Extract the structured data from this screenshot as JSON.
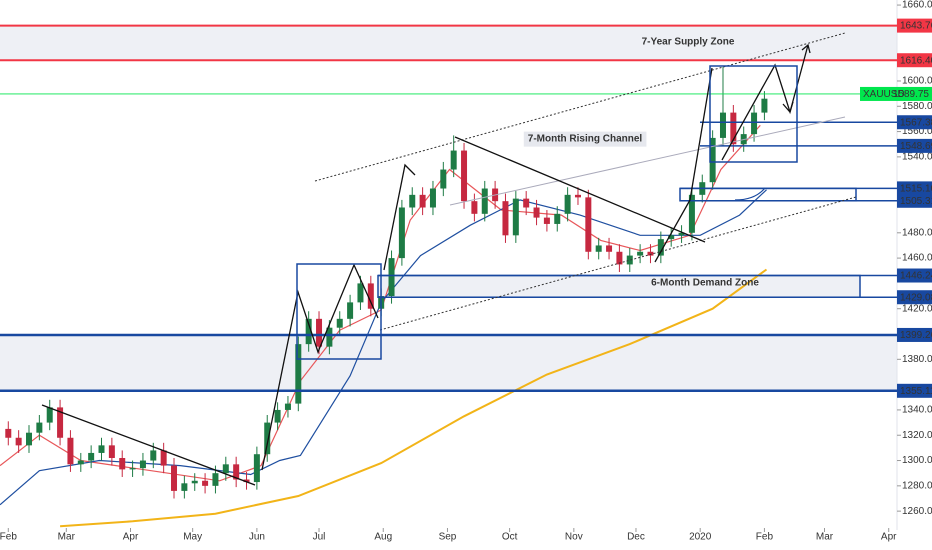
{
  "chart_data": {
    "type": "candlestick",
    "x": [
      0,
      5,
      10,
      15,
      20,
      25,
      30,
      35,
      40,
      45,
      50,
      55,
      60,
      65,
      70,
      75,
      80,
      85,
      90,
      95,
      100,
      105,
      110,
      115,
      120,
      125,
      130,
      135,
      140,
      145,
      150,
      155,
      160,
      165,
      170,
      175,
      180,
      185,
      190,
      195,
      200,
      205,
      210,
      215,
      220,
      225,
      230,
      235,
      240,
      245,
      250,
      255,
      260,
      265,
      270,
      275,
      280,
      285,
      290,
      295,
      300,
      305,
      310,
      315,
      320,
      325,
      330,
      335,
      340,
      345,
      350,
      355,
      360,
      365
    ],
    "open": [
      1325,
      1318,
      1312,
      1322,
      1330,
      1342,
      1318,
      1297,
      1300,
      1306,
      1312,
      1302,
      1293,
      1294,
      1300,
      1308,
      1296,
      1276,
      1282,
      1284,
      1280,
      1290,
      1297,
      1285,
      1283,
      1305,
      1330,
      1340,
      1345,
      1392,
      1412,
      1390,
      1405,
      1412,
      1425,
      1440,
      1420,
      1430,
      1460,
      1500,
      1510,
      1500,
      1515,
      1530,
      1545,
      1505,
      1495,
      1515,
      1505,
      1478,
      1507,
      1500,
      1492,
      1487,
      1495,
      1510,
      1508,
      1465,
      1470,
      1465,
      1455,
      1462,
      1465,
      1462,
      1475,
      1478,
      1480,
      1510,
      1520,
      1555,
      1575,
      1550,
      1558,
      1575
    ],
    "high": [
      1331,
      1324,
      1328,
      1336,
      1348,
      1348,
      1324,
      1306,
      1312,
      1318,
      1318,
      1308,
      1300,
      1306,
      1314,
      1314,
      1302,
      1288,
      1290,
      1290,
      1296,
      1303,
      1303,
      1291,
      1311,
      1336,
      1346,
      1351,
      1398,
      1418,
      1418,
      1411,
      1418,
      1431,
      1446,
      1446,
      1436,
      1466,
      1506,
      1516,
      1516,
      1521,
      1536,
      1557,
      1551,
      1511,
      1521,
      1521,
      1511,
      1513,
      1513,
      1506,
      1498,
      1501,
      1516,
      1516,
      1514,
      1476,
      1476,
      1471,
      1468,
      1471,
      1471,
      1481,
      1484,
      1486,
      1516,
      1526,
      1561,
      1611,
      1581,
      1564,
      1581,
      1592
    ],
    "low": [
      1312,
      1306,
      1306,
      1316,
      1324,
      1312,
      1291,
      1291,
      1294,
      1300,
      1296,
      1287,
      1287,
      1288,
      1294,
      1290,
      1270,
      1270,
      1276,
      1274,
      1274,
      1284,
      1279,
      1277,
      1277,
      1299,
      1324,
      1334,
      1339,
      1386,
      1384,
      1384,
      1399,
      1406,
      1419,
      1414,
      1414,
      1424,
      1454,
      1494,
      1494,
      1494,
      1509,
      1524,
      1499,
      1489,
      1489,
      1499,
      1472,
      1472,
      1494,
      1486,
      1481,
      1481,
      1489,
      1502,
      1459,
      1459,
      1459,
      1449,
      1449,
      1456,
      1456,
      1456,
      1469,
      1472,
      1474,
      1504,
      1514,
      1549,
      1544,
      1544,
      1552,
      1569
    ],
    "close": [
      1318,
      1312,
      1322,
      1330,
      1342,
      1318,
      1297,
      1300,
      1306,
      1312,
      1302,
      1293,
      1294,
      1300,
      1308,
      1296,
      1276,
      1282,
      1284,
      1280,
      1290,
      1297,
      1285,
      1283,
      1305,
      1330,
      1340,
      1345,
      1392,
      1412,
      1390,
      1405,
      1412,
      1425,
      1440,
      1420,
      1430,
      1460,
      1500,
      1510,
      1500,
      1515,
      1530,
      1545,
      1505,
      1495,
      1515,
      1505,
      1478,
      1507,
      1500,
      1492,
      1487,
      1495,
      1510,
      1508,
      1465,
      1470,
      1465,
      1455,
      1462,
      1465,
      1462,
      1475,
      1478,
      1480,
      1510,
      1520,
      1555,
      1575,
      1550,
      1558,
      1575,
      1586
    ],
    "up_color": "#1e7b45",
    "down_color": "#c62840",
    "xlim": [
      -4,
      429
    ],
    "ylim": [
      1253,
      1664
    ],
    "xticks": [
      {
        "value": 0,
        "label": "Feb"
      },
      {
        "value": 28,
        "label": "Mar"
      },
      {
        "value": 59,
        "label": "Apr"
      },
      {
        "value": 89,
        "label": "May"
      },
      {
        "value": 120,
        "label": "Jun"
      },
      {
        "value": 150,
        "label": "Jul"
      },
      {
        "value": 181,
        "label": "Aug"
      },
      {
        "value": 212,
        "label": "Sep"
      },
      {
        "value": 242,
        "label": "Oct"
      },
      {
        "value": 273,
        "label": "Nov"
      },
      {
        "value": 303,
        "label": "Dec"
      },
      {
        "value": 334,
        "label": "2020"
      },
      {
        "value": 365,
        "label": "Feb"
      },
      {
        "value": 394,
        "label": "Mar"
      },
      {
        "value": 425,
        "label": "Apr"
      }
    ],
    "yticks": [
      {
        "value": 1660,
        "label": "1660.00"
      },
      {
        "value": 1600,
        "label": "1600.00"
      },
      {
        "value": 1580,
        "label": "1580.00"
      },
      {
        "value": 1560,
        "label": "1560.00"
      },
      {
        "value": 1540,
        "label": "1540.00"
      },
      {
        "value": 1480,
        "label": "1480.00"
      },
      {
        "value": 1460,
        "label": "1460.00"
      },
      {
        "value": 1420,
        "label": "1420.00"
      },
      {
        "value": 1380,
        "label": "1380.00"
      },
      {
        "value": 1340,
        "label": "1340.00"
      },
      {
        "value": 1320,
        "label": "1320.00"
      },
      {
        "value": 1300,
        "label": "1300.00"
      },
      {
        "value": 1280,
        "label": "1280.00"
      },
      {
        "value": 1260,
        "label": "1260.00"
      }
    ],
    "moving_averages": [
      {
        "color": "#e8575a",
        "x": [
          -4,
          15,
          35,
          69,
          102,
          122,
          141,
          160,
          180,
          194,
          213,
          238,
          267,
          286,
          305,
          329,
          344,
          363
        ],
        "values": [
          1296,
          1320,
          1300,
          1292,
          1284,
          1296,
          1363,
          1403,
          1419,
          1490,
          1530,
          1498,
          1494,
          1474,
          1466,
          1478,
          1530,
          1565
        ]
      },
      {
        "color": "#1f4fa0",
        "x": [
          -4,
          15,
          44,
          83,
          117,
          131,
          141,
          165,
          180,
          199,
          223,
          247,
          276,
          305,
          334,
          353,
          366
        ],
        "values": [
          1265,
          1292,
          1300,
          1296,
          1289,
          1300,
          1304,
          1367,
          1425,
          1462,
          1486,
          1506,
          1494,
          1478,
          1478,
          1494,
          1514
        ]
      },
      {
        "color": "#f2b418",
        "x": [
          25,
          60,
          100,
          140,
          180,
          220,
          260,
          300,
          340,
          366
        ],
        "values": [
          1248,
          1252,
          1258,
          1272,
          1298,
          1335,
          1368,
          1392,
          1420,
          1451
        ]
      }
    ],
    "levels": [
      {
        "value": 1643.76,
        "color": "#f23645"
      },
      {
        "value": 1616.4,
        "label": "1616.40",
        "color": "#f23645"
      },
      {
        "value": 1567.38,
        "color": "#1848a0"
      },
      {
        "value": 1548.69,
        "color": "#1848a0"
      },
      {
        "value": 1515.1,
        "label": "1515.10",
        "color": "#1848a0"
      },
      {
        "value": 1505.31,
        "color": "#1848a0"
      },
      {
        "value": 1446.24,
        "color": "#1848a0"
      },
      {
        "value": 1429.08,
        "color": "#1848a0"
      },
      {
        "value": 1399.26,
        "color": "#1848a0"
      },
      {
        "value": 1355.11,
        "color": "#1848a0"
      }
    ],
    "last_price": {
      "symbol": "XAUUSD",
      "value": 1589.75,
      "color": "#00e64d"
    },
    "annotations": [
      {
        "text": "7-Year Supply Zone",
        "color": "#e8403c"
      },
      {
        "text": "7-Month Rising Channel",
        "color": "#1848a0"
      },
      {
        "text": "6-Month Demand Zone",
        "color": "#1848a0"
      }
    ]
  }
}
